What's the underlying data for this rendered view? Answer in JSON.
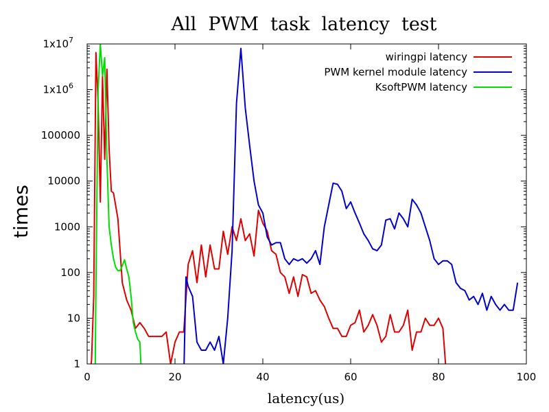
{
  "chart_data": {
    "type": "line",
    "title": "All  PWM  task  latency  test",
    "xlabel": "latency(us)",
    "ylabel": "times",
    "xlim": [
      0,
      100
    ],
    "ylim": [
      1,
      10000000
    ],
    "yscale": "log",
    "grid": false,
    "legend_position": "top-right",
    "x_ticks": [
      "0",
      "20",
      "40",
      "60",
      "80",
      "100"
    ],
    "y_ticks": [
      {
        "label": "1",
        "value": 1
      },
      {
        "label": "10",
        "value": 10
      },
      {
        "label": "100",
        "value": 100
      },
      {
        "label": "1000",
        "value": 1000
      },
      {
        "label": "10000",
        "value": 10000
      },
      {
        "label": "100000",
        "value": 100000
      },
      {
        "label": "1x10",
        "exp": "6",
        "value": 1000000
      },
      {
        "label": "1x10",
        "exp": "7",
        "value": 10000000
      }
    ],
    "series": [
      {
        "name": "wiringpi latency",
        "color": "#dd0000",
        "points": [
          [
            0.5,
            0.5
          ],
          [
            1,
            1.2
          ],
          [
            1.5,
            30
          ],
          [
            2,
            6500000
          ],
          [
            2.5,
            500000
          ],
          [
            3,
            3500
          ],
          [
            3.5,
            2000000
          ],
          [
            4,
            30000
          ],
          [
            4.5,
            2800000
          ],
          [
            5,
            50000
          ],
          [
            5.5,
            6000
          ],
          [
            6,
            5500
          ],
          [
            7,
            1500
          ],
          [
            7.5,
            300
          ],
          [
            8,
            60
          ],
          [
            9,
            25
          ],
          [
            10,
            15
          ],
          [
            11,
            6
          ],
          [
            12,
            8
          ],
          [
            13,
            6
          ],
          [
            14,
            4
          ],
          [
            15,
            4
          ],
          [
            16,
            4
          ],
          [
            17,
            4
          ],
          [
            18,
            5
          ],
          [
            19,
            1
          ],
          [
            20,
            3
          ],
          [
            21,
            5
          ],
          [
            22,
            5
          ],
          [
            23,
            150
          ],
          [
            24,
            300
          ],
          [
            25,
            60
          ],
          [
            26,
            400
          ],
          [
            27,
            80
          ],
          [
            28,
            400
          ],
          [
            29,
            120
          ],
          [
            30,
            120
          ],
          [
            31,
            800
          ],
          [
            32,
            250
          ],
          [
            33,
            1000
          ],
          [
            34,
            500
          ],
          [
            35,
            1500
          ],
          [
            36,
            500
          ],
          [
            37,
            700
          ],
          [
            38,
            230
          ],
          [
            39,
            2300
          ],
          [
            40,
            1200
          ],
          [
            41,
            800
          ],
          [
            42,
            300
          ],
          [
            43,
            250
          ],
          [
            44,
            100
          ],
          [
            45,
            80
          ],
          [
            46,
            35
          ],
          [
            47,
            80
          ],
          [
            48,
            30
          ],
          [
            49,
            90
          ],
          [
            50,
            80
          ],
          [
            51,
            35
          ],
          [
            52,
            40
          ],
          [
            53,
            25
          ],
          [
            54,
            18
          ],
          [
            55,
            10
          ],
          [
            56,
            6
          ],
          [
            57,
            6
          ],
          [
            58,
            4
          ],
          [
            59,
            4
          ],
          [
            60,
            7
          ],
          [
            61,
            8
          ],
          [
            62,
            15
          ],
          [
            63,
            5
          ],
          [
            64,
            7
          ],
          [
            65,
            12
          ],
          [
            66,
            7
          ],
          [
            67,
            3
          ],
          [
            68,
            4
          ],
          [
            69,
            12
          ],
          [
            70,
            5
          ],
          [
            71,
            5
          ],
          [
            72,
            7
          ],
          [
            73,
            15
          ],
          [
            74,
            2
          ],
          [
            75,
            5
          ],
          [
            76,
            5
          ],
          [
            77,
            10
          ],
          [
            78,
            7
          ],
          [
            79,
            7
          ],
          [
            80,
            10
          ],
          [
            81,
            6
          ],
          [
            82,
            0.3
          ]
        ]
      },
      {
        "name": "PWM kernel module latency",
        "color": "#0000cc",
        "points": [
          [
            22,
            0.5
          ],
          [
            22.5,
            80
          ],
          [
            23,
            50
          ],
          [
            24,
            30
          ],
          [
            25,
            3
          ],
          [
            26,
            2
          ],
          [
            27,
            2
          ],
          [
            28,
            3
          ],
          [
            29,
            2
          ],
          [
            30,
            4
          ],
          [
            31,
            1
          ],
          [
            32,
            10
          ],
          [
            33,
            300
          ],
          [
            34,
            500000
          ],
          [
            35,
            8000000
          ],
          [
            36,
            400000
          ],
          [
            37,
            60000
          ],
          [
            38,
            10000
          ],
          [
            39,
            3000
          ],
          [
            40,
            2000
          ],
          [
            41,
            600
          ],
          [
            42,
            400
          ],
          [
            43,
            450
          ],
          [
            44,
            450
          ],
          [
            45,
            200
          ],
          [
            46,
            150
          ],
          [
            47,
            200
          ],
          [
            48,
            180
          ],
          [
            49,
            200
          ],
          [
            50,
            160
          ],
          [
            51,
            200
          ],
          [
            52,
            300
          ],
          [
            53,
            150
          ],
          [
            54,
            1000
          ],
          [
            55,
            3000
          ],
          [
            56,
            9000
          ],
          [
            57,
            8500
          ],
          [
            58,
            6000
          ],
          [
            59,
            2500
          ],
          [
            60,
            3500
          ],
          [
            61,
            2000
          ],
          [
            62,
            1200
          ],
          [
            63,
            700
          ],
          [
            64,
            500
          ],
          [
            65,
            330
          ],
          [
            66,
            300
          ],
          [
            67,
            400
          ],
          [
            68,
            1400
          ],
          [
            69,
            1500
          ],
          [
            70,
            900
          ],
          [
            71,
            2000
          ],
          [
            72,
            1500
          ],
          [
            73,
            1000
          ],
          [
            74,
            4000
          ],
          [
            75,
            3000
          ],
          [
            76,
            2000
          ],
          [
            77,
            1000
          ],
          [
            78,
            500
          ],
          [
            79,
            200
          ],
          [
            80,
            150
          ],
          [
            81,
            180
          ],
          [
            82,
            180
          ],
          [
            83,
            150
          ],
          [
            84,
            60
          ],
          [
            85,
            45
          ],
          [
            86,
            40
          ],
          [
            87,
            25
          ],
          [
            88,
            30
          ],
          [
            89,
            20
          ],
          [
            90,
            35
          ],
          [
            91,
            15
          ],
          [
            92,
            30
          ],
          [
            93,
            20
          ],
          [
            94,
            15
          ],
          [
            95,
            20
          ],
          [
            96,
            15
          ],
          [
            97,
            15
          ],
          [
            98,
            60
          ]
        ]
      },
      {
        "name": "KsoftPWM latency",
        "color": "#00dd00",
        "points": [
          [
            1.8,
            0.3
          ],
          [
            2,
            50
          ],
          [
            2.5,
            1000000
          ],
          [
            3,
            10000000
          ],
          [
            3.5,
            2000000
          ],
          [
            4,
            5000000
          ],
          [
            4.5,
            30000
          ],
          [
            5,
            1000
          ],
          [
            5.5,
            400
          ],
          [
            6,
            200
          ],
          [
            6.5,
            130
          ],
          [
            7,
            110
          ],
          [
            7.5,
            110
          ],
          [
            8,
            140
          ],
          [
            8.5,
            190
          ],
          [
            9,
            120
          ],
          [
            9.5,
            80
          ],
          [
            10,
            30
          ],
          [
            10.5,
            8
          ],
          [
            11,
            5
          ],
          [
            11.5,
            3.5
          ],
          [
            12,
            3
          ],
          [
            12.5,
            0.3
          ]
        ]
      }
    ]
  }
}
